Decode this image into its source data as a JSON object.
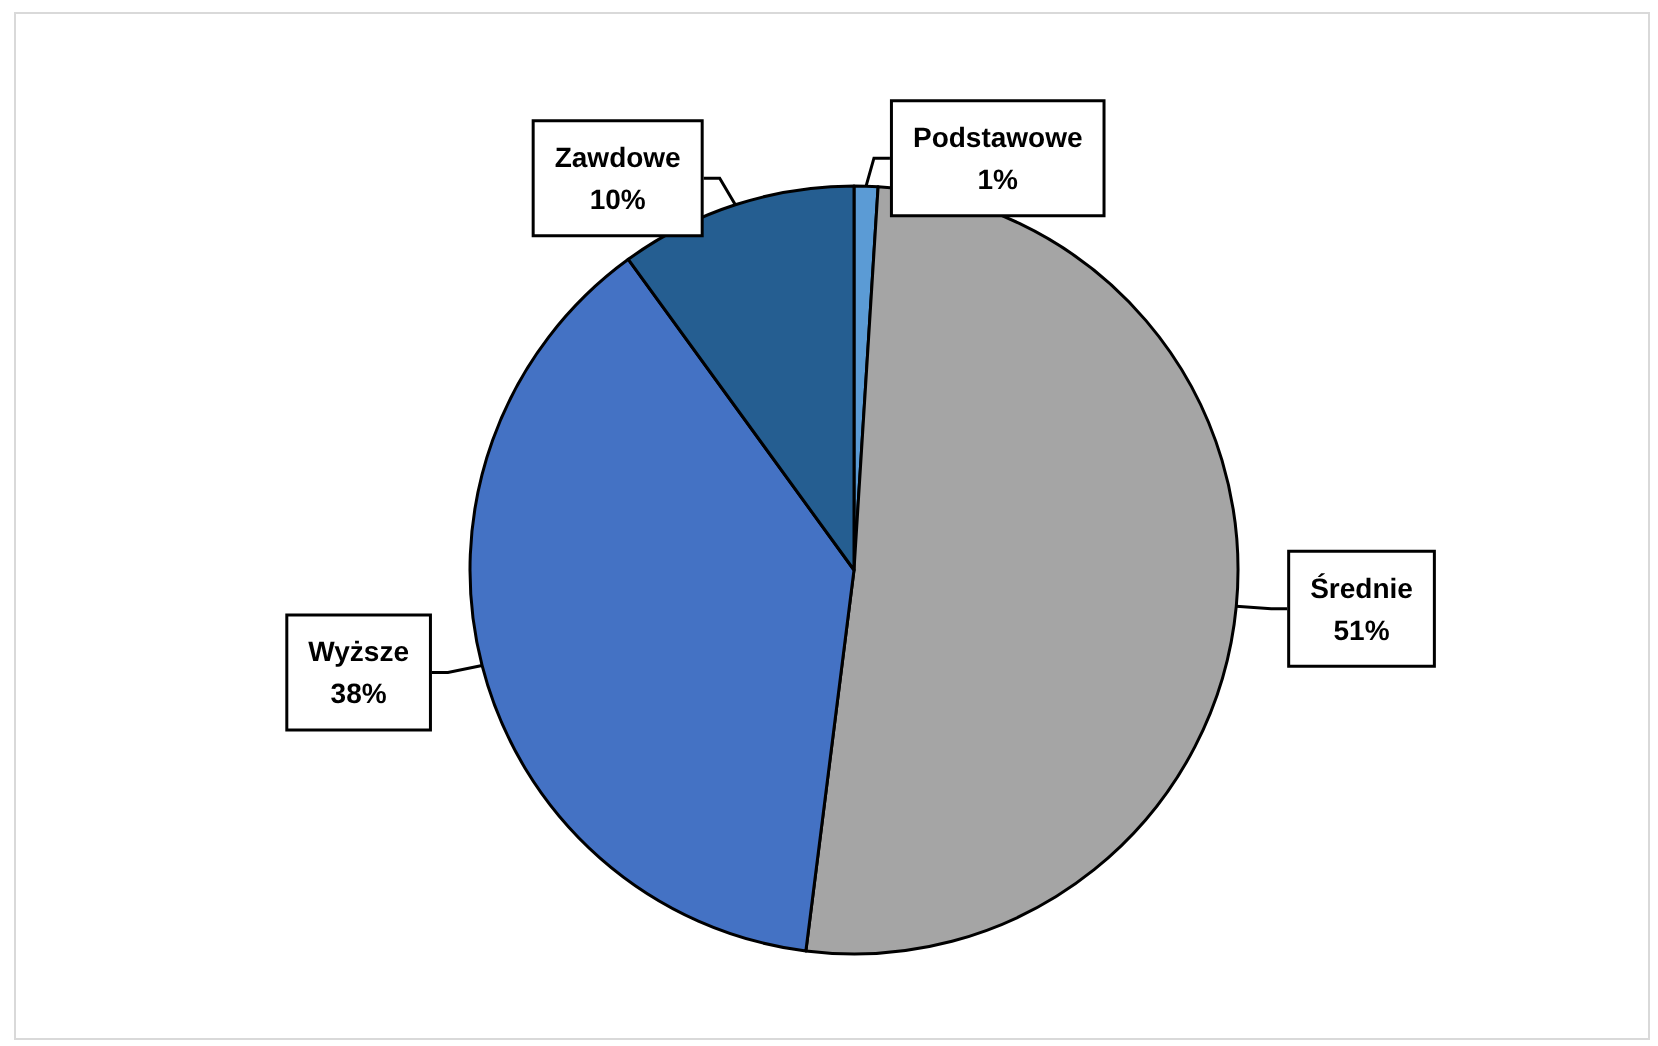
{
  "chart_data": {
    "type": "pie",
    "categories": [
      "Podstawowe",
      "Średnie",
      "Wyższe",
      "Zawdowe"
    ],
    "values": [
      1,
      51,
      38,
      10
    ],
    "colors": [
      "#5b9bd5",
      "#a5a5a5",
      "#4472c4",
      "#255e91"
    ],
    "value_labels": [
      "1%",
      "51%",
      "38%",
      "10%"
    ]
  }
}
